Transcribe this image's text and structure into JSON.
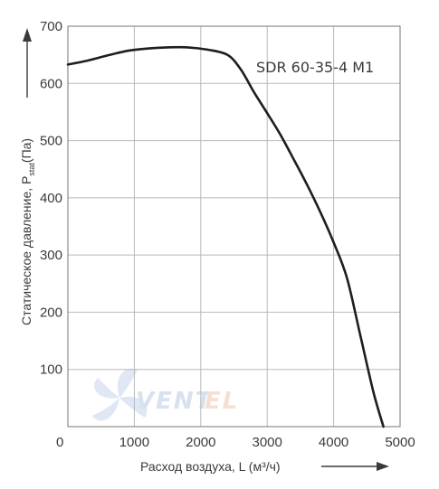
{
  "chart_data": {
    "type": "line",
    "title": "SDR 60-35-4 M1",
    "xlabel": "Расход воздуха, L (м³/ч)",
    "ylabel": "Статическое давление, P",
    "ylabel_subscript": "stat",
    "ylabel_unit": "(Па)",
    "xlim": [
      0,
      5000
    ],
    "ylim": [
      0,
      700
    ],
    "x_ticks": [
      0,
      1000,
      2000,
      3000,
      4000,
      5000
    ],
    "y_ticks": [
      100,
      200,
      300,
      400,
      500,
      600,
      700
    ],
    "grid": true,
    "series": [
      {
        "name": "SDR 60-35-4 M1",
        "color": "#1e1e1e",
        "x": [
          0,
          300,
          600,
          900,
          1200,
          1500,
          1800,
          2100,
          2400,
          2600,
          2800,
          3000,
          3200,
          3400,
          3600,
          3800,
          4000,
          4200,
          4400,
          4600,
          4750
        ],
        "y": [
          633,
          640,
          649,
          657,
          661,
          663,
          663,
          659,
          650,
          625,
          585,
          548,
          510,
          467,
          423,
          375,
          322,
          260,
          160,
          60,
          0
        ]
      }
    ]
  },
  "watermark": {
    "text": "VENTEL",
    "colors": [
      "#c4d5ea",
      "#f3d3c0"
    ]
  }
}
